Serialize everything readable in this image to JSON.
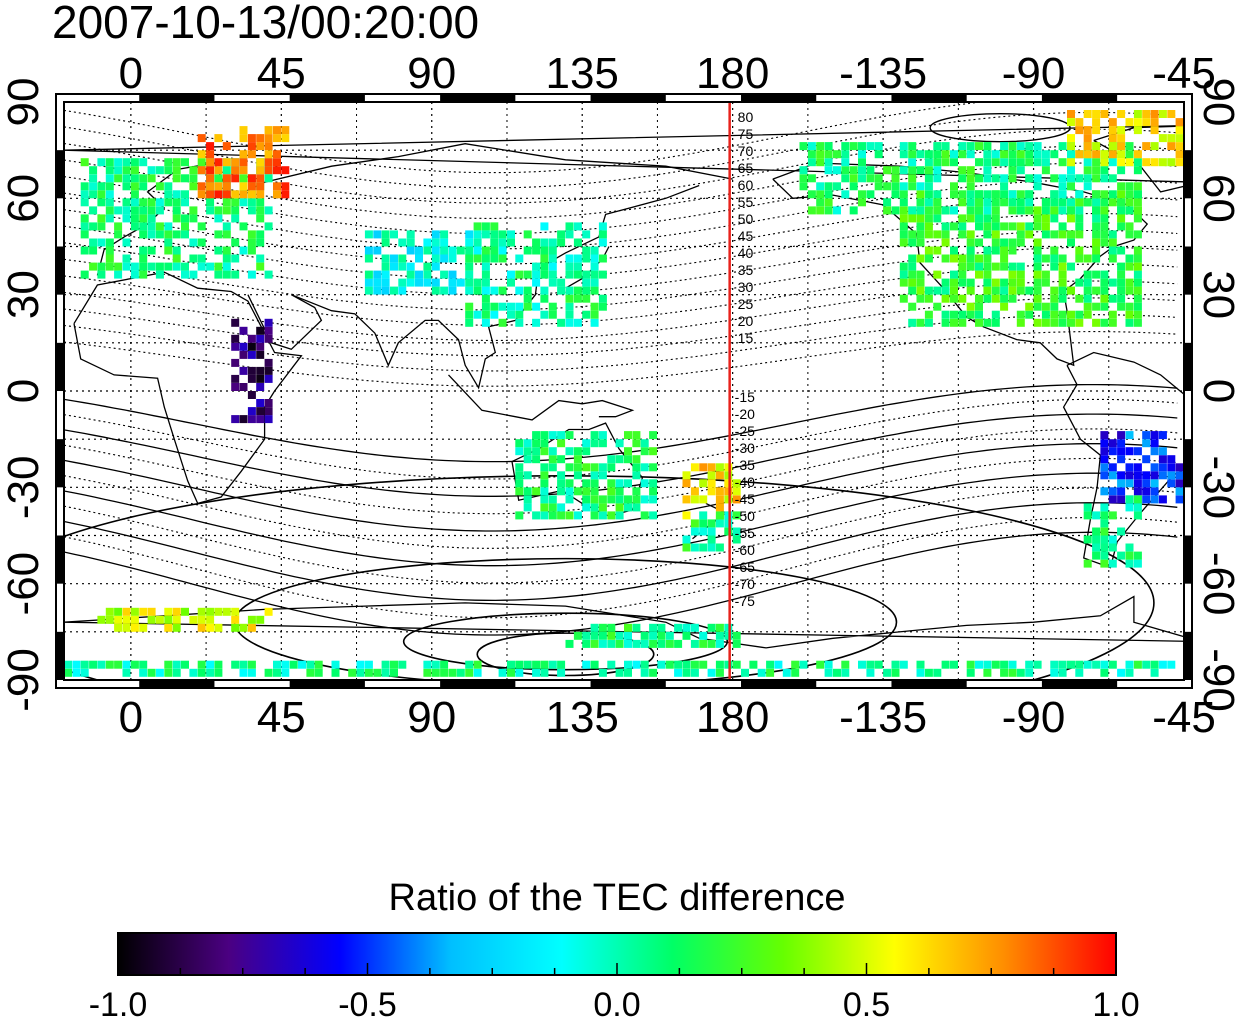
{
  "title": "2007-10-13/00:20:00",
  "map": {
    "x_tick_labels": [
      "0",
      "45",
      "90",
      "135",
      "180",
      "-135",
      "-90",
      "-45"
    ],
    "y_tick_labels": [
      "90",
      "60",
      "30",
      "0",
      "-30",
      "-60",
      "-90"
    ],
    "marker_longitude": 180,
    "marker_color": "#e8221c",
    "upper_contour_labels": [
      "80",
      "75",
      "70",
      "65",
      "60",
      "55",
      "50",
      "45",
      "40",
      "35",
      "30",
      "25",
      "20",
      "15"
    ],
    "lower_contour_labels": [
      "-15",
      "-20",
      "-25",
      "-30",
      "-35",
      "-40",
      "-45",
      "-50",
      "-55",
      "-60",
      "-65",
      "-70",
      "-75"
    ]
  },
  "colorbar": {
    "title": "Ratio of the TEC difference",
    "tick_labels": [
      "-1.0",
      "-0.5",
      "0.0",
      "0.5",
      "1.0"
    ],
    "range": [
      -1.0,
      1.0
    ],
    "colors": [
      "#000000",
      "#4b0082",
      "#0000ff",
      "#00bfff",
      "#00ffff",
      "#00ff66",
      "#66ff00",
      "#ffff00",
      "#ff8c00",
      "#ff0000"
    ]
  },
  "chart_data": {
    "type": "heatmap",
    "title": "2007-10-13/00:20:00",
    "xlabel": "",
    "ylabel": "",
    "x_ticks": [
      0,
      45,
      90,
      135,
      180,
      -135,
      -90,
      -45
    ],
    "y_ticks": [
      90,
      60,
      30,
      0,
      -30,
      -60,
      -90
    ],
    "xlim": [
      -20,
      315
    ],
    "ylim": [
      -90,
      90
    ],
    "colorbar_label": "Ratio of the TEC difference",
    "color_range": [
      -1.0,
      1.0
    ],
    "colorbar_ticks": [
      -1.0,
      -0.5,
      0.0,
      0.5,
      1.0
    ],
    "contour_labels": [
      80,
      75,
      70,
      65,
      60,
      55,
      50,
      45,
      40,
      35,
      30,
      25,
      20,
      15,
      -15,
      -20,
      -25,
      -30,
      -35,
      -40,
      -45,
      -50,
      -55,
      -60,
      -65,
      -70,
      -75
    ],
    "regions": [
      {
        "lon": [
          -15,
          40
        ],
        "lat": [
          35,
          70
        ],
        "value": 0.1
      },
      {
        "lon": [
          20,
          45
        ],
        "lat": [
          60,
          80
        ],
        "value": 0.8
      },
      {
        "lon": [
          30,
          42
        ],
        "lat": [
          -10,
          20
        ],
        "value": -0.8
      },
      {
        "lon": [
          70,
          100
        ],
        "lat": [
          30,
          48
        ],
        "value": -0.1
      },
      {
        "lon": [
          100,
          140
        ],
        "lat": [
          20,
          50
        ],
        "value": 0.05
      },
      {
        "lon": [
          115,
          155
        ],
        "lat": [
          -40,
          -15
        ],
        "value": 0.1
      },
      {
        "lon": [
          165,
          180
        ],
        "lat": [
          -40,
          -25
        ],
        "value": 0.6
      },
      {
        "lon": [
          165,
          180
        ],
        "lat": [
          -50,
          -40
        ],
        "value": 0.1
      },
      {
        "lon": [
          -130,
          -60
        ],
        "lat": [
          20,
          60
        ],
        "value": 0.2
      },
      {
        "lon": [
          -160,
          -60
        ],
        "lat": [
          55,
          75
        ],
        "value": 0.1
      },
      {
        "lon": [
          -80,
          -35
        ],
        "lat": [
          70,
          85
        ],
        "value": 0.6
      },
      {
        "lon": [
          -70,
          -40
        ],
        "lat": [
          -35,
          -15
        ],
        "value": -0.5
      },
      {
        "lon": [
          -75,
          -60
        ],
        "lat": [
          -55,
          -35
        ],
        "value": 0.1
      },
      {
        "lon": [
          -20,
          310
        ],
        "lat": [
          -89,
          -86
        ],
        "value": 0.05
      },
      {
        "lon": [
          130,
          180
        ],
        "lat": [
          -80,
          -75
        ],
        "value": 0.1
      },
      {
        "lon": [
          -10,
          40
        ],
        "lat": [
          -75,
          -70
        ],
        "value": 0.5
      }
    ]
  }
}
